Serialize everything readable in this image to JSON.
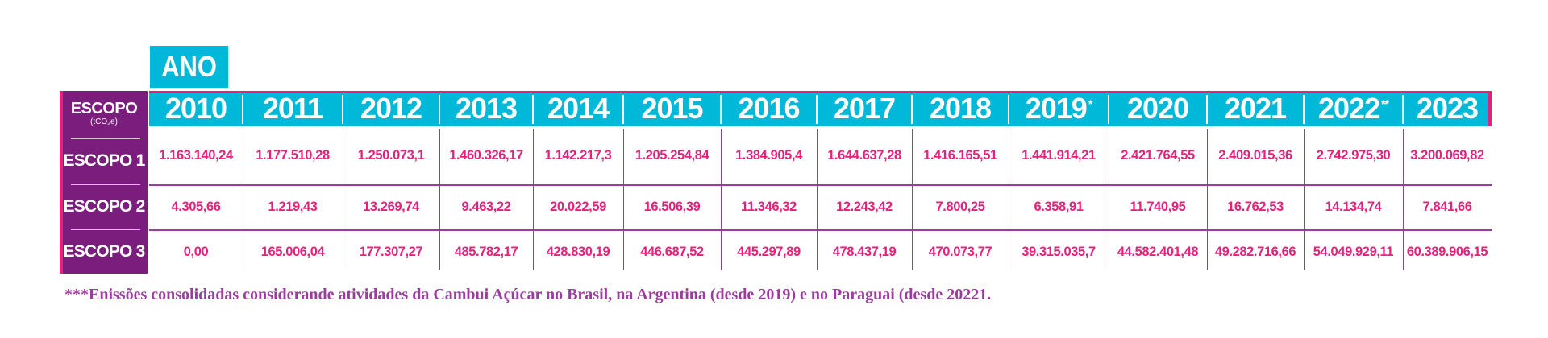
{
  "header": {
    "year_label": "ANO",
    "scope_label": "ESCOPO",
    "scope_unit": "(tCO₂e)"
  },
  "columns": [
    {
      "year": "2010",
      "mark": ""
    },
    {
      "year": "2011",
      "mark": ""
    },
    {
      "year": "2012",
      "mark": ""
    },
    {
      "year": "2013",
      "mark": ""
    },
    {
      "year": "2014",
      "mark": ""
    },
    {
      "year": "2015",
      "mark": ""
    },
    {
      "year": "2016",
      "mark": ""
    },
    {
      "year": "2017",
      "mark": ""
    },
    {
      "year": "2018",
      "mark": ""
    },
    {
      "year": "2019",
      "mark": "*"
    },
    {
      "year": "2020",
      "mark": ""
    },
    {
      "year": "2021",
      "mark": ""
    },
    {
      "year": "2022",
      "mark": "**"
    },
    {
      "year": "2023",
      "mark": ""
    }
  ],
  "rows": [
    {
      "label": "ESCOPO 1",
      "values": [
        "1.163.140,24",
        "1.177.510,28",
        "1.250.073,1",
        "1.460.326,17",
        "1.142.217,3",
        "1.205.254,84",
        "1.384.905,4",
        "1.644.637,28",
        "1.416.165,51",
        "1.441.914,21",
        "2.421.764,55",
        "2.409.015,36",
        "2.742.975,30",
        "3.200.069,82"
      ]
    },
    {
      "label": "ESCOPO 2",
      "values": [
        "4.305,66",
        "1.219,43",
        "13.269,74",
        "9.463,22",
        "20.022,59",
        "16.506,39",
        "11.346,32",
        "12.243,42",
        "7.800,25",
        "6.358,91",
        "11.740,95",
        "16.762,53",
        "14.134,74",
        "7.841,66"
      ]
    },
    {
      "label": "ESCOPO 3",
      "values": [
        "0,00",
        "165.006,04",
        "177.307,27",
        "485.782,17",
        "428.830,19",
        "446.687,52",
        "445.297,89",
        "478.437,19",
        "470.073,77",
        "39.315.035,7",
        "44.582.401,48",
        "49.282.716,66",
        "54.049.929,11",
        "60.389.906,15"
      ]
    }
  ],
  "footnote": "***Enissões consolidadas considerande atividades da Cambui Açúcar no Brasil, na Argentina (desde 2019) e no Paraguai (desde 20221."
}
